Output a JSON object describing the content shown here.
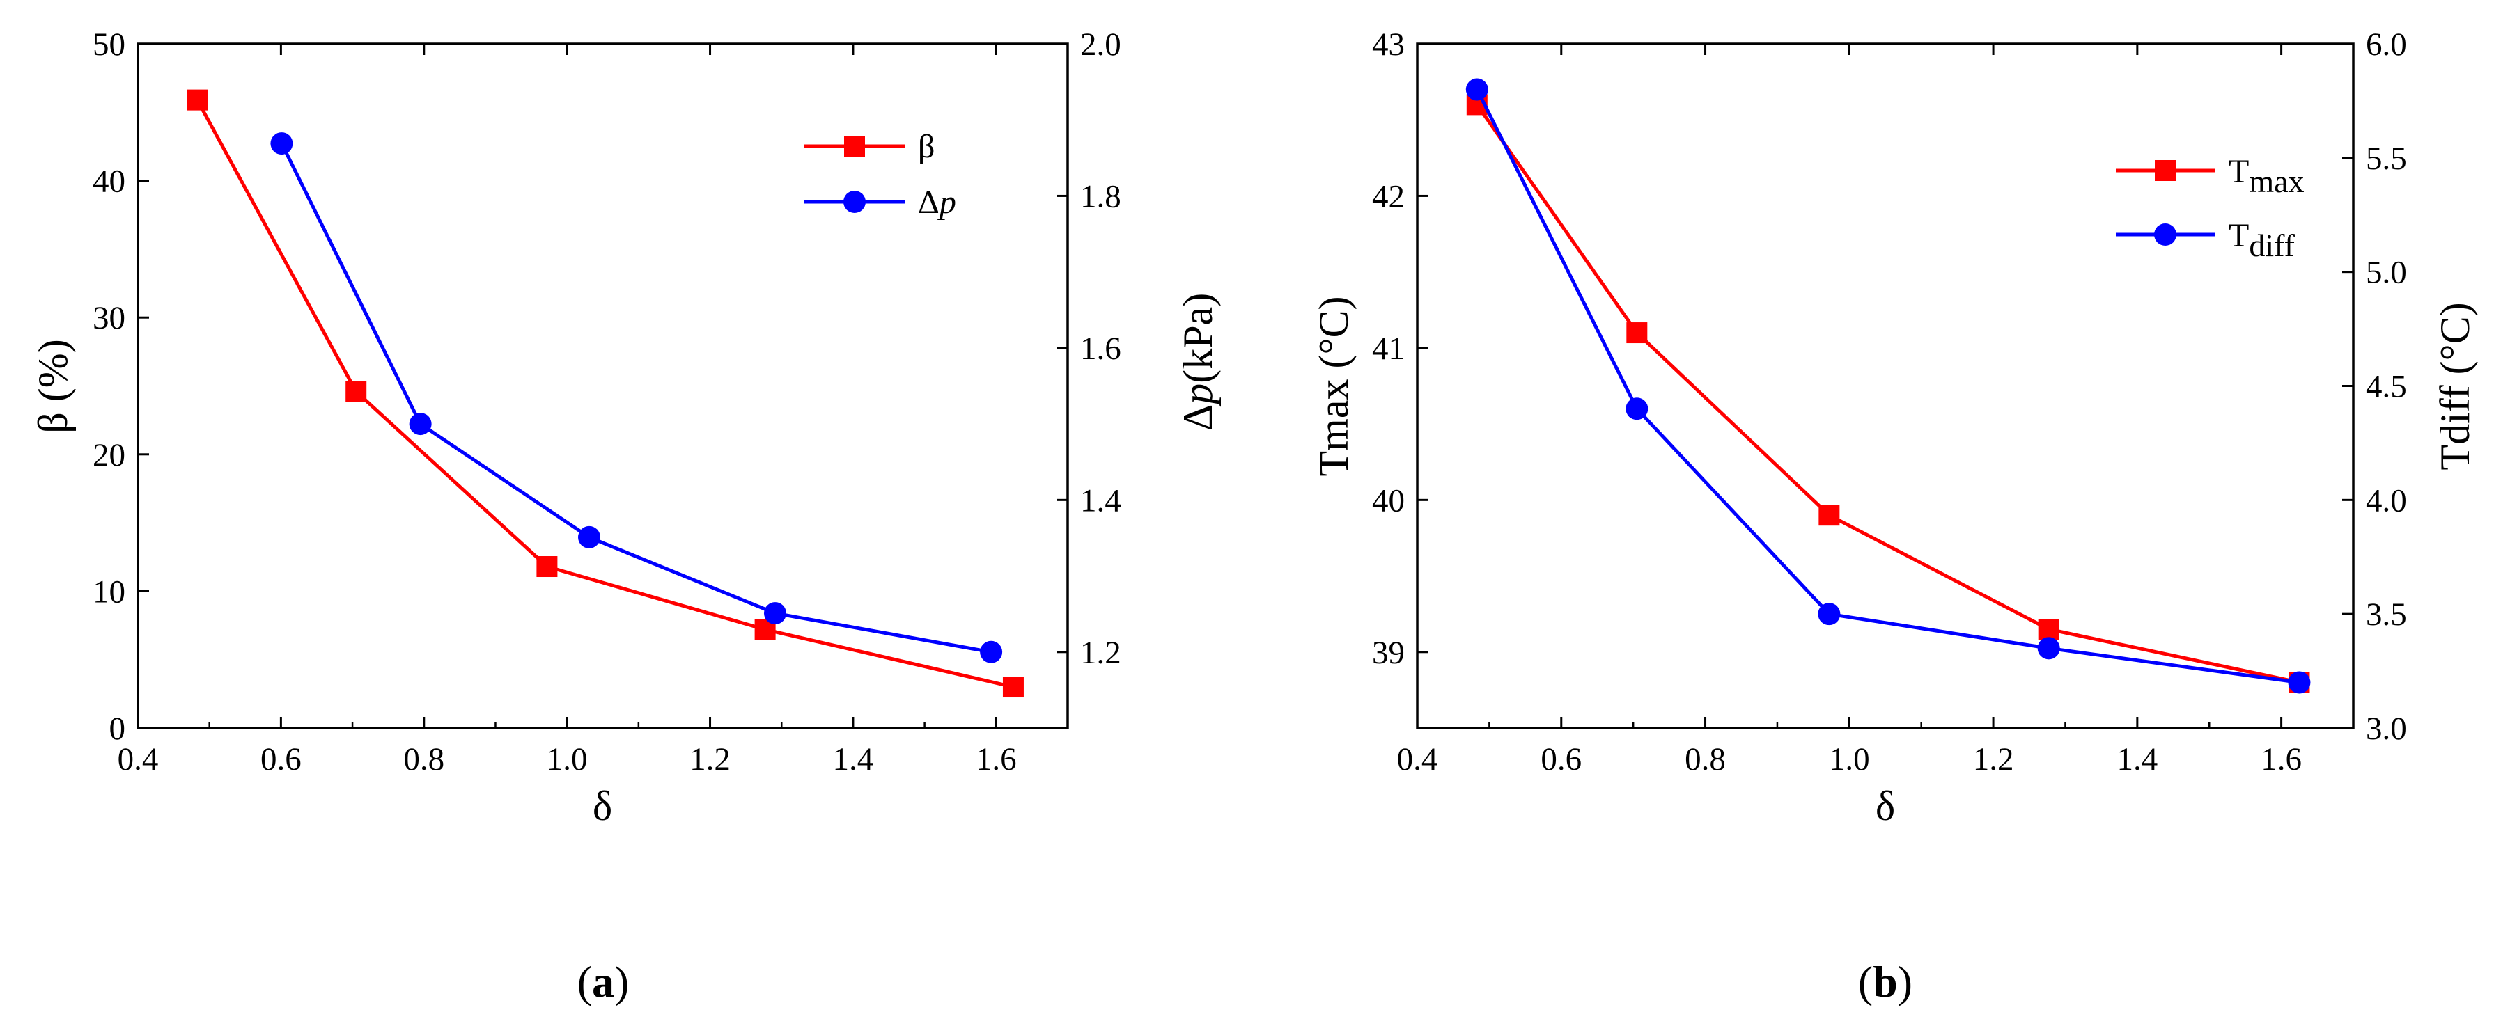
{
  "chart_data": [
    {
      "type": "line",
      "panel_label": "a",
      "xlabel": "δ",
      "xlim": [
        0.4,
        1.7
      ],
      "x_ticks": [
        "0.4",
        "0.6",
        "0.8",
        "1.0",
        "1.2",
        "1.4",
        "1.6"
      ],
      "ylabel_left": "β (%)",
      "ylim_left": [
        0,
        50
      ],
      "y_ticks_left": [
        "0",
        "10",
        "20",
        "30",
        "40",
        "50"
      ],
      "ylabel_right": {
        "prefix": "Δ",
        "italic": "p",
        "suffix": "(kPa)"
      },
      "ylim_right": [
        1.1,
        2.0
      ],
      "y_ticks_right": [
        "1.2",
        "1.4",
        "1.6",
        "1.8",
        "2.0"
      ],
      "legend_position": "top-right",
      "series": [
        {
          "name": "β",
          "axis": "left",
          "color": "#ff0000",
          "marker": "square",
          "x": [
            0.483,
            0.705,
            0.972,
            1.277,
            1.624
          ],
          "y": [
            45.9,
            24.6,
            11.8,
            7.2,
            3.0
          ]
        },
        {
          "name": {
            "prefix": "Δ",
            "italic": "p"
          },
          "axis": "right",
          "color": "#0000ff",
          "marker": "circle",
          "x": [
            0.601,
            0.795,
            1.031,
            1.291,
            1.593
          ],
          "y": [
            1.869,
            1.5,
            1.351,
            1.251,
            1.2
          ]
        }
      ]
    },
    {
      "type": "line",
      "panel_label": "b",
      "xlabel": "δ",
      "xlim": [
        0.4,
        1.7
      ],
      "x_ticks": [
        "0.4",
        "0.6",
        "0.8",
        "1.0",
        "1.2",
        "1.4",
        "1.6"
      ],
      "ylabel_left": "Tmax (°C)",
      "ylim_left": [
        38.5,
        43
      ],
      "y_ticks_left": [
        "39",
        "40",
        "41",
        "42",
        "43"
      ],
      "ylabel_right": "Tdiff (°C)",
      "ylim_right": [
        3.0,
        6.0
      ],
      "y_ticks_right": [
        "3.0",
        "3.5",
        "4.0",
        "4.5",
        "5.0",
        "5.5",
        "6.0"
      ],
      "legend_position": "top-right",
      "series": [
        {
          "name": {
            "base": "T",
            "sub": "max"
          },
          "axis": "left",
          "color": "#ff0000",
          "marker": "square",
          "x": [
            0.483,
            0.705,
            0.972,
            1.277,
            1.625
          ],
          "y": [
            42.6,
            41.1,
            39.9,
            39.15,
            38.8
          ]
        },
        {
          "name": {
            "base": "T",
            "sub": "diff"
          },
          "axis": "right",
          "color": "#0000ff",
          "marker": "circle",
          "x": [
            0.483,
            0.705,
            0.972,
            1.277,
            1.625
          ],
          "y": [
            5.8,
            4.4,
            3.5,
            3.35,
            3.2
          ]
        }
      ]
    }
  ]
}
